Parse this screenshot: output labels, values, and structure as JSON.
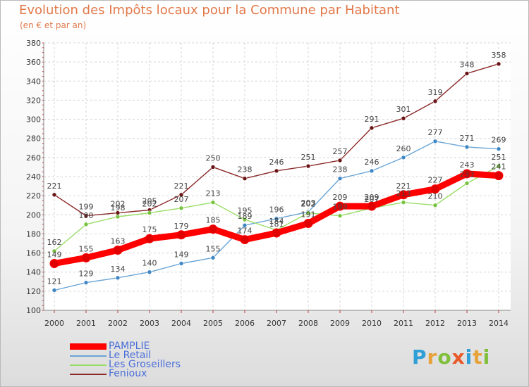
{
  "header": {
    "title": "Evolution des Impôts locaux pour la Commune par Habitant",
    "subtitle": "(en € et par an)"
  },
  "logo": {
    "text": "Proxiti",
    "colors": [
      "#2f9fd6",
      "#e8a23a",
      "#7fbf3a",
      "#e85a2a",
      "#2f9fd6",
      "#e8a23a",
      "#7fbf3a"
    ]
  },
  "chart_data": {
    "type": "line",
    "title": "Evolution des Impôts locaux pour la Commune par Habitant",
    "subtitle": "(en € et par an)",
    "xlabel": "",
    "ylabel": "",
    "x": [
      2000,
      2001,
      2002,
      2003,
      2004,
      2005,
      2006,
      2007,
      2008,
      2009,
      2010,
      2011,
      2012,
      2013,
      2014
    ],
    "ylim": [
      100,
      380
    ],
    "yticks": [
      100,
      120,
      140,
      160,
      180,
      200,
      220,
      240,
      260,
      280,
      300,
      320,
      340,
      360,
      380
    ],
    "grid": true,
    "legend_position": "bottom-left",
    "series": [
      {
        "name": "PAMPLIE",
        "color": "#ff0000",
        "marker": "#e00000",
        "values": [
          149,
          155,
          163,
          175,
          179,
          185,
          174,
          181,
          191,
          209,
          209,
          221,
          227,
          243,
          241
        ],
        "labels": [
          "149",
          "155",
          "163",
          "175",
          "179",
          "185",
          "174",
          "181",
          "191",
          "209",
          "209",
          "221",
          "227",
          "243",
          "241"
        ]
      },
      {
        "name": "Le Retail",
        "color": "#6aa5d6",
        "marker": "#3f86c4",
        "values": [
          121,
          129,
          134,
          140,
          149,
          155,
          189,
          196,
          203,
          238,
          246,
          260,
          277,
          271,
          269
        ],
        "labels": [
          "121",
          "129",
          "134",
          "140",
          "149",
          "155",
          "189",
          "196",
          "203",
          "238",
          "246",
          "260",
          "277",
          "271",
          "269"
        ]
      },
      {
        "name": "Les Groseillers",
        "color": "#99dd66",
        "marker": "#77c23e",
        "values": [
          162,
          190,
          198,
          202,
          207,
          213,
          195,
          184,
          202,
          199,
          207,
          213,
          210,
          233,
          251
        ],
        "labels": [
          "162",
          "190",
          "198",
          "202",
          "207",
          "213",
          "195",
          "184",
          "202",
          "199",
          "207",
          "213",
          "210",
          "233",
          "251"
        ]
      },
      {
        "name": "Fenioux",
        "color": "#8b2a2a",
        "marker": "#6a1414",
        "values": [
          221,
          199,
          202,
          205,
          221,
          250,
          238,
          246,
          251,
          257,
          291,
          301,
          319,
          348,
          358
        ],
        "labels": [
          "221",
          "199",
          "202",
          "205",
          "221",
          "250",
          "238",
          "246",
          "251",
          "257",
          "291",
          "301",
          "319",
          "348",
          "358"
        ]
      }
    ]
  }
}
